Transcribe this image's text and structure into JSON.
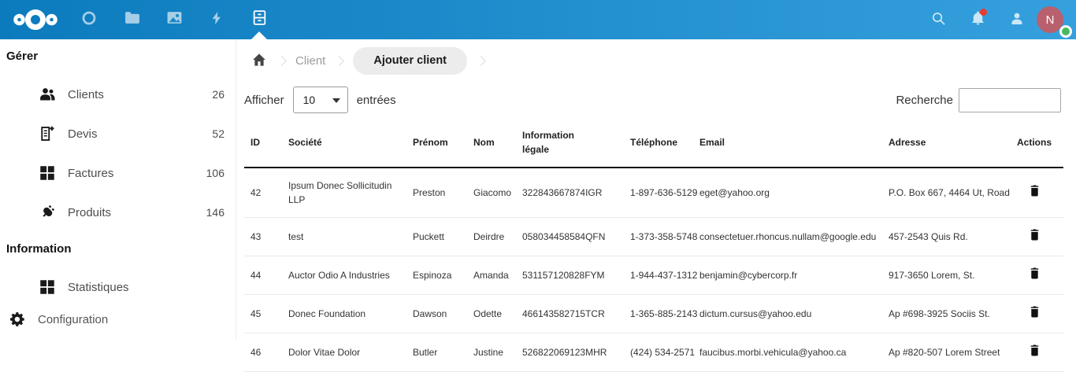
{
  "colors": {
    "topbar_gradient_start": "#0c7bbd",
    "topbar_gradient_end": "#35a0dd",
    "notification_red": "#eb3b2f",
    "avatar_bg": "#b9606e",
    "status_green": "#48ba5d"
  },
  "topbar": {
    "app_tabs": [
      {
        "icon": "ring-icon",
        "active": false
      },
      {
        "icon": "folder-icon",
        "active": false
      },
      {
        "icon": "photos-icon",
        "active": false
      },
      {
        "icon": "lightning-icon",
        "active": false
      },
      {
        "icon": "cabinet-icon",
        "active": true
      }
    ],
    "right_icons": [
      "search-icon",
      "bell-icon",
      "contacts-icon"
    ],
    "avatar_letter": "N"
  },
  "sidebar": {
    "sections": [
      {
        "title": "Gérer",
        "items": [
          {
            "icon": "clients-icon",
            "label": "Clients",
            "count": "26"
          },
          {
            "icon": "quote-icon",
            "label": "Devis",
            "count": "52"
          },
          {
            "icon": "grid-icon",
            "label": "Factures",
            "count": "106"
          },
          {
            "icon": "plug-icon",
            "label": "Produits",
            "count": "146"
          }
        ]
      },
      {
        "title": "Information",
        "items": [
          {
            "icon": "grid-icon",
            "label": "Statistiques",
            "count": ""
          }
        ]
      }
    ],
    "footer": {
      "icon": "gear-icon",
      "label": "Configuration"
    }
  },
  "breadcrumb": {
    "links": [
      "Client"
    ],
    "active": "Ajouter client"
  },
  "controls": {
    "show_label": "Afficher",
    "page_size": "10",
    "entries_label": "entrées",
    "search_label": "Recherche",
    "search_value": ""
  },
  "table": {
    "headers": [
      "ID",
      "Société",
      "Prénom",
      "Nom",
      "Information légale",
      "Téléphone",
      "Email",
      "Adresse",
      "Actions"
    ],
    "rows": [
      [
        "42",
        "Ipsum Donec Sollicitudin LLP",
        "Preston",
        "Giacomo",
        "322843667874IGR",
        "1-897-636-5129",
        "eget@yahoo.org",
        "P.O. Box 667, 4464 Ut, Road"
      ],
      [
        "43",
        "test",
        "Puckett",
        "Deirdre",
        "058034458584QFN",
        "1-373-358-5748",
        "consectetuer.rhoncus.nullam@google.edu",
        "457-2543 Quis Rd."
      ],
      [
        "44",
        "Auctor Odio A Industries",
        "Espinoza",
        "Amanda",
        "531157120828FYM",
        "1-944-437-1312",
        "benjamin@cybercorp.fr",
        "917-3650 Lorem, St."
      ],
      [
        "45",
        "Donec Foundation",
        "Dawson",
        "Odette",
        "466143582715TCR",
        "1-365-885-2143",
        "dictum.cursus@yahoo.edu",
        "Ap #698-3925 Sociis St."
      ],
      [
        "46",
        "Dolor Vitae Dolor",
        "Butler",
        "Justine",
        "526822069123MHR",
        "(424) 534-2571",
        "faucibus.morbi.vehicula@yahoo.ca",
        "Ap #820-507 Lorem Street"
      ]
    ]
  }
}
